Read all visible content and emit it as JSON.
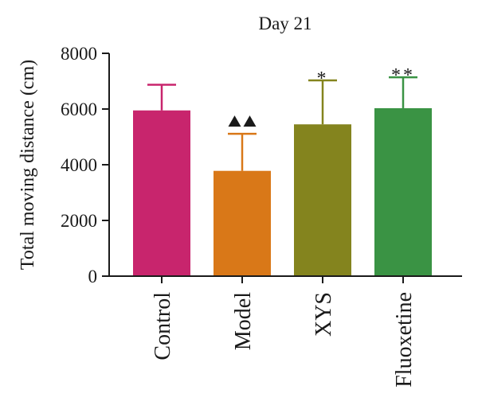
{
  "chart_data": {
    "type": "bar",
    "title": "Day 21",
    "ylabel": "Total moving distance (cm)",
    "xlabel": "",
    "ylim": [
      0,
      8000
    ],
    "yticks": [
      0,
      2000,
      4000,
      6000,
      8000
    ],
    "categories": [
      "Control",
      "Model",
      "XYS",
      "Fluoxetine"
    ],
    "values": [
      5950,
      3780,
      5450,
      6030
    ],
    "errors": [
      920,
      1330,
      1580,
      1110
    ],
    "significance": [
      "",
      "▲▲",
      "*",
      "**"
    ],
    "colors": [
      "#c8256d",
      "#d97818",
      "#84841e",
      "#3a9344"
    ],
    "grid": false
  }
}
